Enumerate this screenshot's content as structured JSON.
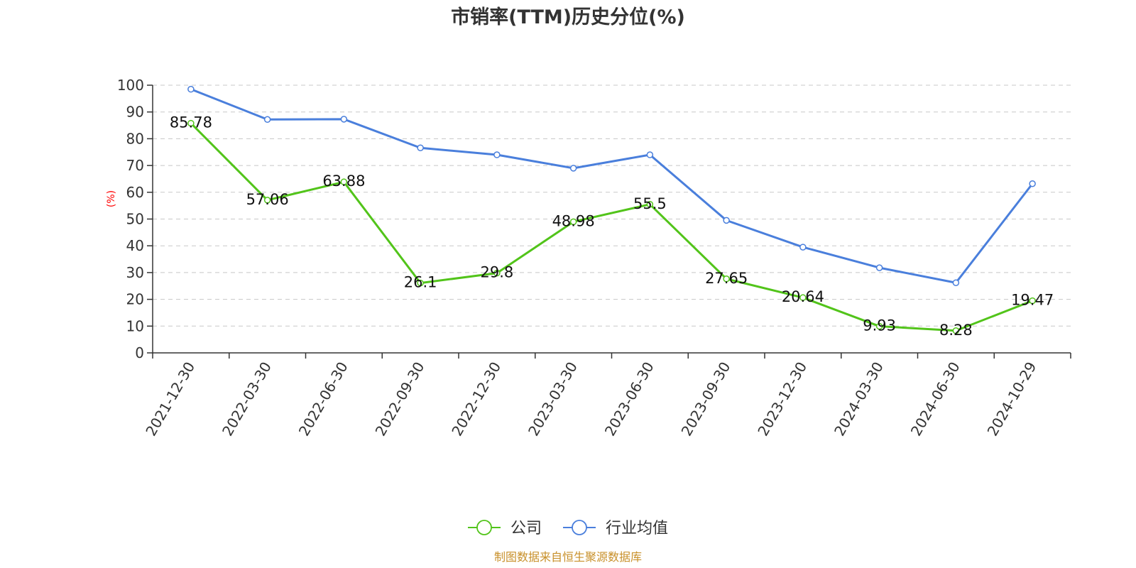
{
  "chart_data": {
    "type": "line",
    "title": "市销率(TTM)历史分位(%)",
    "ylabel": "(%)",
    "xlabel": "",
    "ylim": [
      0,
      100
    ],
    "yticks": [
      0,
      10,
      20,
      30,
      40,
      50,
      60,
      70,
      80,
      90,
      100
    ],
    "grid": true,
    "legend_position": "bottom-center",
    "categories": [
      "2021-12-30",
      "2022-03-30",
      "2022-06-30",
      "2022-09-30",
      "2022-12-30",
      "2023-03-30",
      "2023-06-30",
      "2023-09-30",
      "2023-12-30",
      "2024-03-30",
      "2024-06-30",
      "2024-10-29"
    ],
    "series": [
      {
        "name": "公司",
        "color": "#52c41a",
        "show_labels": true,
        "values": [
          85.78,
          57.06,
          63.88,
          26.1,
          29.8,
          48.98,
          55.5,
          27.65,
          20.64,
          9.93,
          8.28,
          19.47
        ]
      },
      {
        "name": "行业均值",
        "color": "#4a7fdc",
        "show_labels": false,
        "values": [
          98.5,
          87.2,
          87.3,
          76.6,
          74.0,
          69.0,
          74.0,
          49.5,
          39.5,
          31.8,
          26.2,
          63.2
        ]
      }
    ],
    "source": "制图数据来自恒生聚源数据库"
  }
}
